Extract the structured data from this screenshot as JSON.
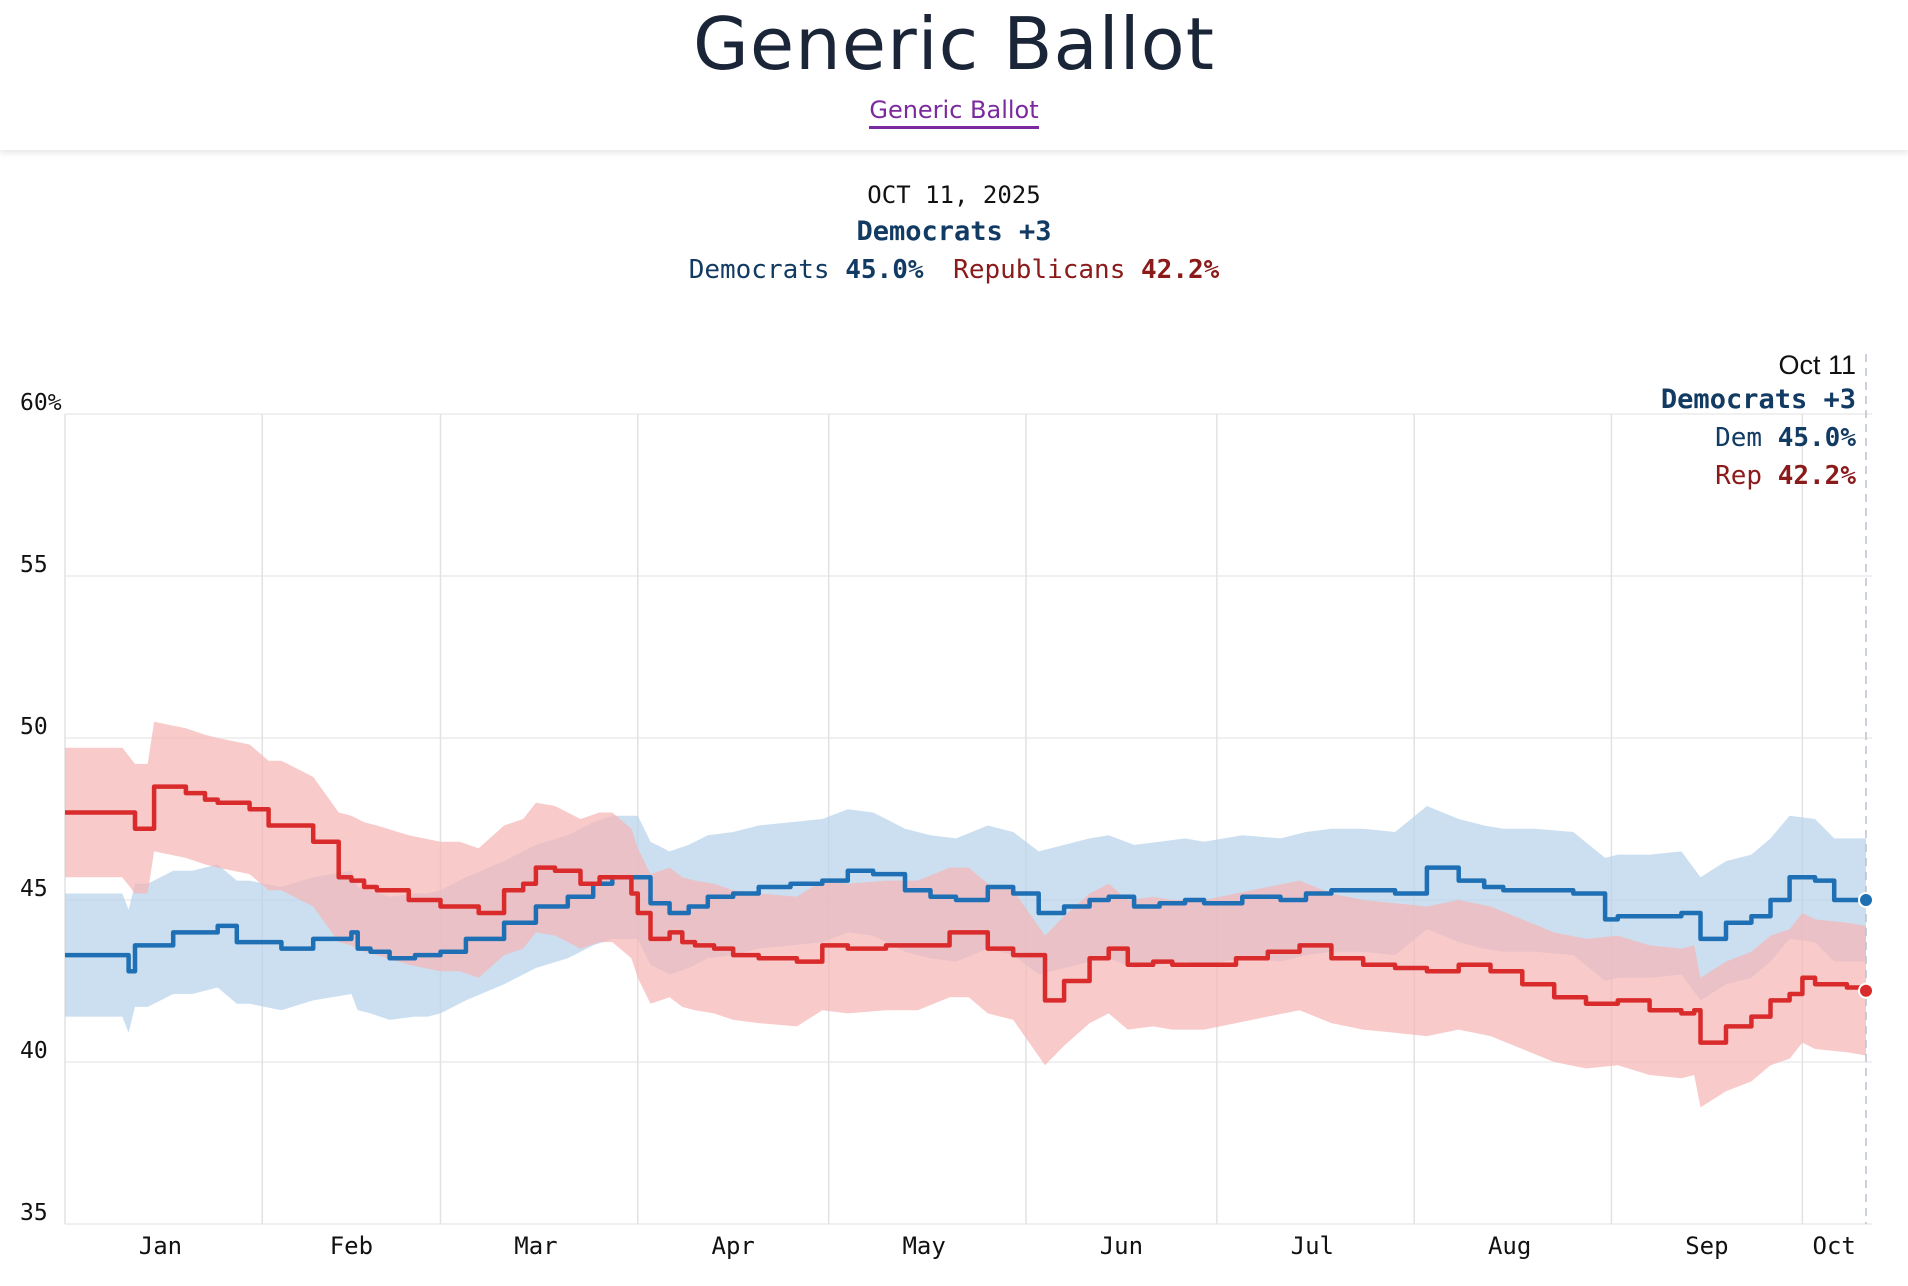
{
  "header": {
    "title": "Generic Ballot",
    "link_label": "Generic Ballot"
  },
  "summary": {
    "date": "OCT 11, 2025",
    "leader": "Democrats +3",
    "dem_label": "Democrats",
    "dem_value": "45.0%",
    "rep_label": "Republicans",
    "rep_value": "42.2%"
  },
  "tooltip": {
    "date": "Oct 11",
    "leader": "Democrats +3",
    "dem_label": "Dem",
    "dem_value": "45.0%",
    "rep_label": "Rep",
    "rep_value": "42.2%"
  },
  "colors": {
    "dem": "#1f6fb4",
    "dem_band": "#b7d3ea",
    "rep": "#d92b2b",
    "rep_band": "#f5b5b5"
  },
  "chart_data": {
    "type": "line",
    "title": "Generic Ballot",
    "xlabel": "",
    "ylabel": "",
    "ylim": [
      35,
      60
    ],
    "yticks": [
      35,
      40,
      45,
      50,
      55,
      60
    ],
    "ytick_labels": [
      "35",
      "40",
      "45",
      "50",
      "55",
      "60%"
    ],
    "x_unit": "day of year 2025",
    "xlim": [
      1,
      284
    ],
    "month_ticks": [
      {
        "label": "Jan",
        "day": 16
      },
      {
        "label": "Feb",
        "day": 46
      },
      {
        "label": "Mar",
        "day": 75
      },
      {
        "label": "Apr",
        "day": 106
      },
      {
        "label": "May",
        "day": 136
      },
      {
        "label": "Jun",
        "day": 167
      },
      {
        "label": "Jul",
        "day": 197
      },
      {
        "label": "Aug",
        "day": 228
      },
      {
        "label": "Sep",
        "day": 259
      },
      {
        "label": "Oct",
        "day": 279
      }
    ],
    "month_starts": [
      32,
      60,
      91,
      121,
      152,
      182,
      213,
      244,
      274
    ],
    "series": [
      {
        "name": "Democrats",
        "x": [
          1,
          10,
          11,
          12,
          14,
          18,
          21,
          25,
          28,
          30,
          35,
          40,
          46,
          47,
          49,
          52,
          56,
          58,
          60,
          64,
          70,
          75,
          80,
          84,
          87,
          91,
          93,
          96,
          99,
          102,
          106,
          110,
          115,
          120,
          124,
          128,
          133,
          137,
          141,
          146,
          150,
          154,
          158,
          162,
          165,
          169,
          173,
          177,
          180,
          186,
          192,
          196,
          200,
          205,
          210,
          215,
          220,
          224,
          227,
          232,
          238,
          243,
          245,
          250,
          255,
          258,
          262,
          266,
          269,
          272,
          276,
          279,
          284
        ],
        "values": [
          43.3,
          43.3,
          42.8,
          43.6,
          43.6,
          44.0,
          44.0,
          44.2,
          43.7,
          43.7,
          43.5,
          43.8,
          44.0,
          43.5,
          43.4,
          43.2,
          43.3,
          43.3,
          43.4,
          43.8,
          44.3,
          44.8,
          45.1,
          45.5,
          45.7,
          45.7,
          44.9,
          44.6,
          44.8,
          45.1,
          45.2,
          45.4,
          45.5,
          45.6,
          45.9,
          45.8,
          45.3,
          45.1,
          45.0,
          45.4,
          45.2,
          44.6,
          44.8,
          45.0,
          45.1,
          44.8,
          44.9,
          45.0,
          44.9,
          45.1,
          45.0,
          45.2,
          45.3,
          45.3,
          45.2,
          46.0,
          45.6,
          45.4,
          45.3,
          45.3,
          45.2,
          44.4,
          44.5,
          44.5,
          44.6,
          43.8,
          44.3,
          44.5,
          45.0,
          45.7,
          45.6,
          45.0,
          45.0
        ],
        "band_width": 1.9
      },
      {
        "name": "Republicans",
        "x": [
          1,
          10,
          12,
          14,
          15,
          20,
          23,
          25,
          30,
          33,
          35,
          40,
          44,
          46,
          48,
          50,
          55,
          60,
          63,
          66,
          70,
          73,
          75,
          78,
          82,
          85,
          87,
          90,
          91,
          93,
          96,
          98,
          100,
          103,
          106,
          110,
          116,
          120,
          124,
          130,
          135,
          140,
          143,
          146,
          150,
          155,
          158,
          162,
          165,
          168,
          172,
          175,
          180,
          185,
          190,
          195,
          200,
          205,
          210,
          215,
          220,
          225,
          230,
          235,
          240,
          245,
          250,
          255,
          257,
          258,
          262,
          266,
          269,
          272,
          274,
          276,
          281,
          284
        ],
        "values": [
          47.7,
          47.7,
          47.2,
          47.2,
          48.5,
          48.3,
          48.1,
          48.0,
          47.8,
          47.3,
          47.3,
          46.8,
          45.7,
          45.6,
          45.4,
          45.3,
          45.0,
          44.8,
          44.8,
          44.6,
          45.3,
          45.5,
          46.0,
          45.9,
          45.5,
          45.7,
          45.7,
          45.2,
          44.6,
          43.8,
          44.0,
          43.7,
          43.6,
          43.5,
          43.3,
          43.2,
          43.1,
          43.6,
          43.5,
          43.6,
          43.6,
          44.0,
          44.0,
          43.5,
          43.3,
          41.9,
          42.5,
          43.2,
          43.5,
          43.0,
          43.1,
          43.0,
          43.0,
          43.2,
          43.4,
          43.6,
          43.2,
          43.0,
          42.9,
          42.8,
          43.0,
          42.8,
          42.4,
          42.0,
          41.8,
          41.9,
          41.6,
          41.5,
          41.6,
          40.6,
          41.1,
          41.4,
          41.9,
          42.1,
          42.6,
          42.4,
          42.3,
          42.2
        ],
        "band_width": 2.0
      }
    ]
  }
}
